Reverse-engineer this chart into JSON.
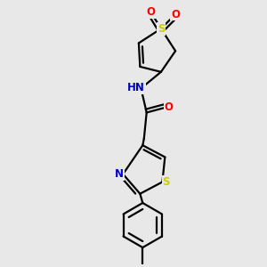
{
  "bg_color": "#e8e8e8",
  "bond_color": "#000000",
  "S_color": "#cccc00",
  "N_color": "#0000cd",
  "O_color": "#ff0000",
  "line_width": 1.6,
  "figsize": [
    3.0,
    3.0
  ],
  "dpi": 100,
  "xlim": [
    0,
    10
  ],
  "ylim": [
    0,
    10
  ]
}
